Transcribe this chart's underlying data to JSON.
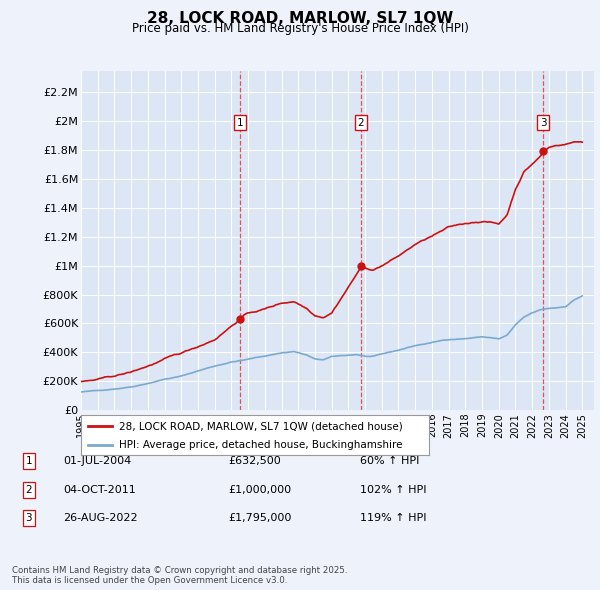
{
  "title": "28, LOCK ROAD, MARLOW, SL7 1QW",
  "subtitle": "Price paid vs. HM Land Registry's House Price Index (HPI)",
  "background_color": "#eef2fb",
  "plot_bg_color": "#dde6f5",
  "grid_color": "#ffffff",
  "ylabel_ticks": [
    "£0",
    "£200K",
    "£400K",
    "£600K",
    "£800K",
    "£1M",
    "£1.2M",
    "£1.4M",
    "£1.6M",
    "£1.8M",
    "£2M",
    "£2.2M"
  ],
  "ylabel_values": [
    0,
    200000,
    400000,
    600000,
    800000,
    1000000,
    1200000,
    1400000,
    1600000,
    1800000,
    2000000,
    2200000
  ],
  "ylim": [
    0,
    2350000
  ],
  "xlim_start": 1995.0,
  "xlim_end": 2025.7,
  "sale_dates": [
    2004.5,
    2011.75,
    2022.65
  ],
  "sale_prices": [
    632500,
    1000000,
    1795000
  ],
  "sale_labels": [
    "1",
    "2",
    "3"
  ],
  "dashed_line_color": "#dd2222",
  "legend_line1_label": "28, LOCK ROAD, MARLOW, SL7 1QW (detached house)",
  "legend_line2_label": "HPI: Average price, detached house, Buckinghamshire",
  "table_rows": [
    [
      "1",
      "01-JUL-2004",
      "£632,500",
      "60% ↑ HPI"
    ],
    [
      "2",
      "04-OCT-2011",
      "£1,000,000",
      "102% ↑ HPI"
    ],
    [
      "3",
      "26-AUG-2022",
      "£1,795,000",
      "119% ↑ HPI"
    ]
  ],
  "footnote": "Contains HM Land Registry data © Crown copyright and database right 2025.\nThis data is licensed under the Open Government Licence v3.0.",
  "property_line_color": "#cc1111",
  "hpi_line_color": "#7aaad0",
  "x_ticks": [
    1995,
    1996,
    1997,
    1998,
    1999,
    2000,
    2001,
    2002,
    2003,
    2004,
    2005,
    2006,
    2007,
    2008,
    2009,
    2010,
    2011,
    2012,
    2013,
    2014,
    2015,
    2016,
    2017,
    2018,
    2019,
    2020,
    2021,
    2022,
    2023,
    2024,
    2025
  ]
}
